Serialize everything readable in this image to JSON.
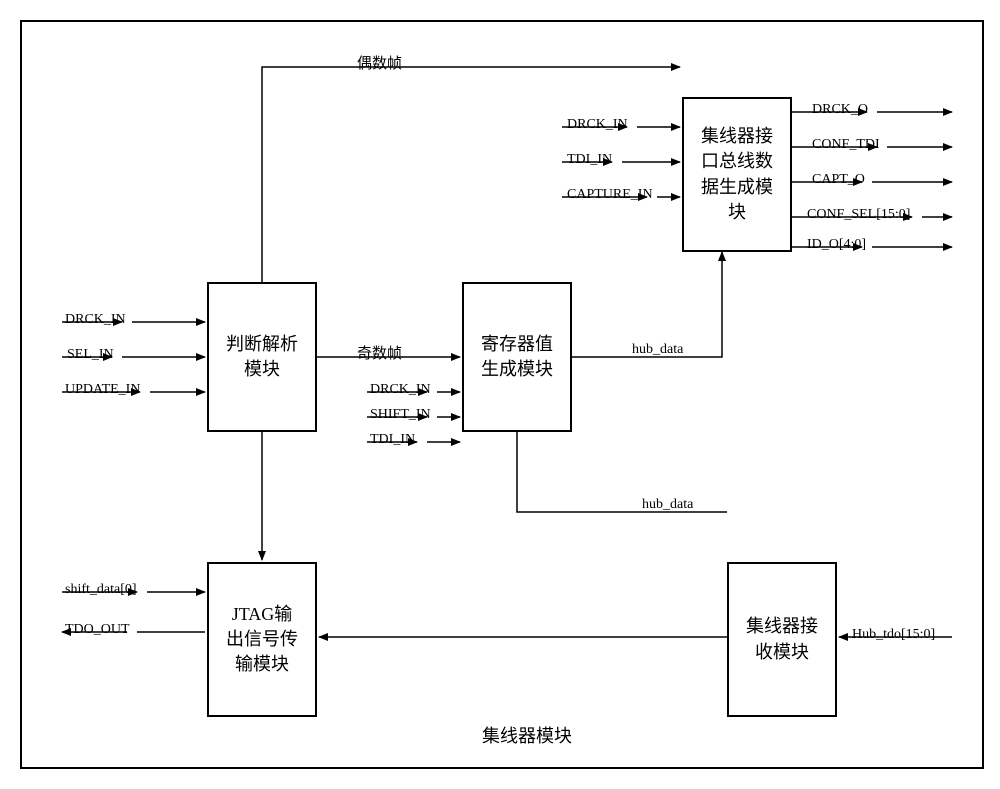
{
  "diagram": {
    "title": "集线器模块",
    "boxes": {
      "parse": {
        "label": "判断解析\n模块"
      },
      "jtagout": {
        "label": "JTAG输\n出信号传\n输模块"
      },
      "reggen": {
        "label": "寄存器值\n生成模块"
      },
      "hubbus": {
        "label": "集线器接\n口总线数\n据生成模\n块"
      },
      "hubrx": {
        "label": "集线器接\n收模块"
      }
    },
    "signals": {
      "parse_in": [
        "DRCK_IN",
        "SEL_IN",
        "UPDATE_IN"
      ],
      "jtag_in": [
        "shift_data[0]"
      ],
      "jtag_out": [
        "TDO_OUT"
      ],
      "reggen_in": [
        "DRCK_IN",
        "SHIFT_IN",
        "TDI_IN"
      ],
      "hubbus_in": [
        "DRCK_IN",
        "TDI_IN",
        "CAPTURE_IN"
      ],
      "hubbus_out": [
        "DRCK_O",
        "CONF_TDI",
        "CAPT_O",
        "CONF_SEL[15:0]",
        "ID_O[4:0]"
      ],
      "hubrx_in": [
        "Hub_tdo[15:0]"
      ],
      "even_frame": "偶数帧",
      "odd_frame": "奇数帧",
      "hub_data_1": "hub_data",
      "hub_data_2": "hub_data"
    },
    "style": {
      "stroke": "#000000",
      "stroke_width": 2,
      "arrow_width": 1.5,
      "bg": "#ffffff",
      "font_box": 18,
      "font_signal": 14
    }
  }
}
